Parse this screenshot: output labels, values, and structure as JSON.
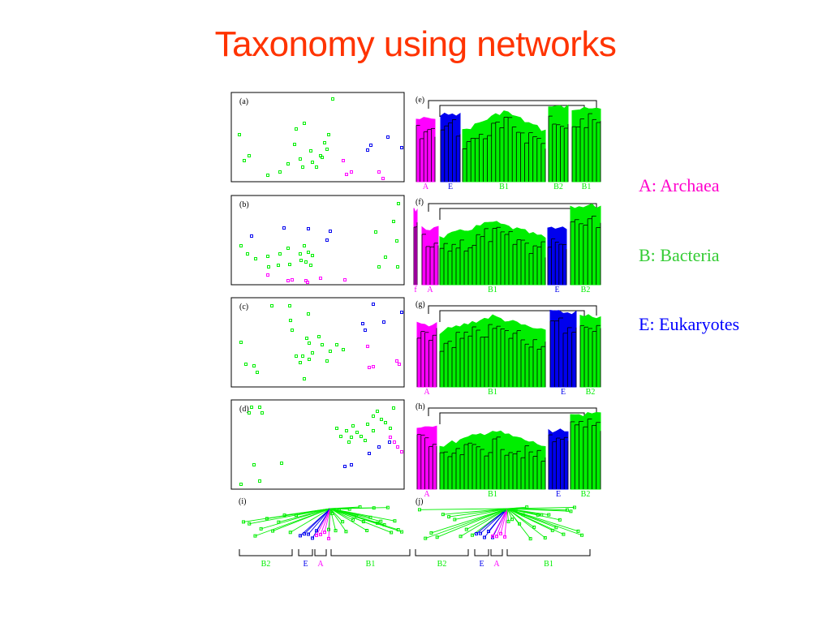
{
  "title": "Taxonomy using networks",
  "legend": [
    {
      "label": "A: Archaea",
      "color": "#ff00cc"
    },
    {
      "label": "B: Bacteria",
      "color": "#33cc33"
    },
    {
      "label": "E: Eukaryotes",
      "color": "#0000ff"
    }
  ],
  "colors": {
    "archaea": "#ff00ff",
    "bacteria": "#00ee00",
    "eukaryotes": "#0000ee",
    "outline": "#000000"
  },
  "scatter_panels": [
    {
      "label": "(a)"
    },
    {
      "label": "(b)"
    },
    {
      "label": "(c)"
    },
    {
      "label": "(d)"
    }
  ],
  "dendrogram_panels": [
    {
      "label": "(e)",
      "groups": [
        "A",
        "E",
        "B1",
        "B2",
        "B1"
      ]
    },
    {
      "label": "(f)",
      "groups": [
        "f",
        "A",
        "B1",
        "E",
        "B2"
      ]
    },
    {
      "label": "(g)",
      "groups": [
        "A",
        "B1",
        "E",
        "B2"
      ]
    },
    {
      "label": "(h)",
      "groups": [
        "A",
        "B1",
        "E",
        "B2"
      ]
    }
  ],
  "tree_panels": [
    {
      "label": "(i)",
      "groups": [
        "B2",
        "E",
        "A",
        "B1"
      ]
    },
    {
      "label": "(j)",
      "groups": [
        "B2",
        "E",
        "A",
        "B1"
      ]
    }
  ]
}
